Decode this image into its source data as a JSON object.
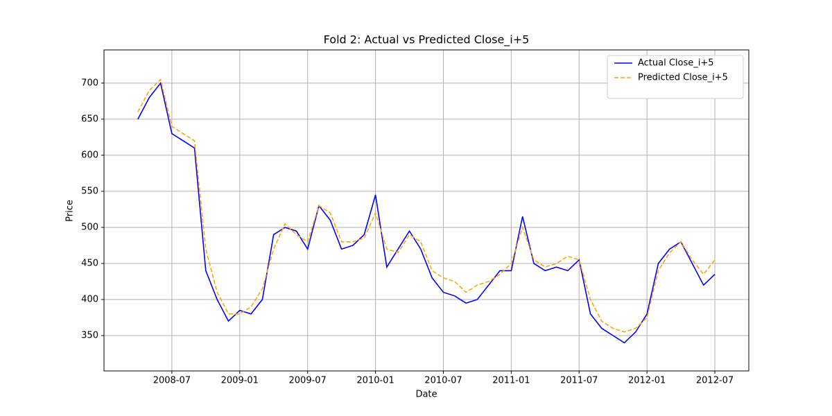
{
  "chart_data": {
    "type": "line",
    "title": "Fold 2: Actual vs Predicted Close_i+5",
    "x_label": "Date",
    "y_label": "Price",
    "x": [
      "2008-04",
      "2008-05",
      "2008-06",
      "2008-07",
      "2008-08",
      "2008-09",
      "2008-10",
      "2008-11",
      "2008-12",
      "2009-01",
      "2009-02",
      "2009-03",
      "2009-04",
      "2009-05",
      "2009-06",
      "2009-07",
      "2009-08",
      "2009-09",
      "2009-10",
      "2009-11",
      "2009-12",
      "2010-01",
      "2010-02",
      "2010-03",
      "2010-04",
      "2010-05",
      "2010-06",
      "2010-07",
      "2010-08",
      "2010-09",
      "2010-10",
      "2010-11",
      "2010-12",
      "2011-01",
      "2011-02",
      "2011-03",
      "2011-04",
      "2011-05",
      "2011-06",
      "2011-07",
      "2011-08",
      "2011-09",
      "2011-10",
      "2011-11",
      "2011-12",
      "2012-01",
      "2012-02",
      "2012-03",
      "2012-04",
      "2012-05",
      "2012-06",
      "2012-07"
    ],
    "series": [
      {
        "name": "Actual Close_i+5",
        "color": "#0000ff",
        "dashed": false,
        "values": [
          650,
          680,
          700,
          630,
          620,
          610,
          440,
          400,
          370,
          385,
          380,
          400,
          490,
          500,
          495,
          470,
          530,
          510,
          470,
          475,
          490,
          545,
          445,
          470,
          495,
          470,
          430,
          410,
          405,
          395,
          400,
          420,
          440,
          440,
          515,
          450,
          440,
          445,
          440,
          455,
          380,
          360,
          350,
          340,
          355,
          380,
          450,
          470,
          480,
          450,
          420,
          435
        ]
      },
      {
        "name": "Predicted Close_i+5",
        "color": "#ffa500",
        "dashed": true,
        "values": [
          660,
          690,
          705,
          640,
          630,
          620,
          470,
          410,
          380,
          380,
          390,
          415,
          470,
          505,
          490,
          480,
          530,
          520,
          480,
          480,
          485,
          520,
          470,
          465,
          490,
          480,
          440,
          430,
          425,
          410,
          420,
          425,
          435,
          450,
          500,
          455,
          445,
          450,
          460,
          455,
          400,
          370,
          360,
          355,
          360,
          375,
          440,
          465,
          480,
          455,
          435,
          455
        ]
      }
    ],
    "xlim": [
      "2008-01",
      "2012-10"
    ],
    "xticks": [
      "2008-07",
      "2009-01",
      "2009-07",
      "2010-01",
      "2010-07",
      "2011-01",
      "2011-07",
      "2012-01",
      "2012-07"
    ],
    "ylim": [
      301,
      746
    ],
    "yticks": [
      350,
      400,
      450,
      500,
      550,
      600,
      650,
      700
    ],
    "grid": true,
    "legend": "upper right"
  }
}
